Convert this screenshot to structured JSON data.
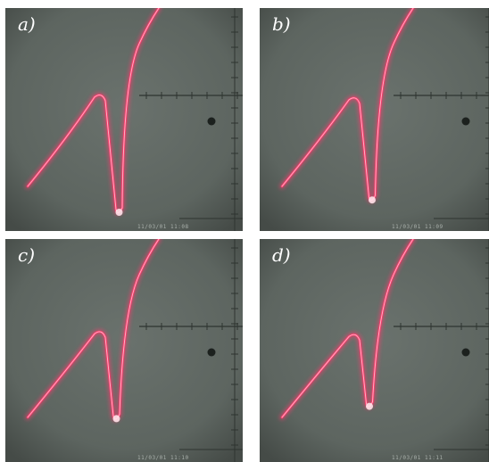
{
  "figure": {
    "panels": [
      {
        "label": "a)",
        "timestamp": "11/03/01 11:08",
        "dip_depth": 1.0,
        "peak_height": 0.62
      },
      {
        "label": "b)",
        "timestamp": "11/03/01 11:09",
        "dip_depth": 0.85,
        "peak_height": 0.6
      },
      {
        "label": "c)",
        "timestamp": "11/03/01 11:10",
        "dip_depth": 0.7,
        "peak_height": 0.58
      },
      {
        "label": "d)",
        "timestamp": "11/03/01 11:11",
        "dip_depth": 0.55,
        "peak_height": 0.56
      }
    ],
    "colors": {
      "screen": "#5d6560",
      "trace": "#ff3d6e",
      "trace_core": "#ffd6df",
      "grid": "#2e3430",
      "label": "#ffffff"
    }
  }
}
